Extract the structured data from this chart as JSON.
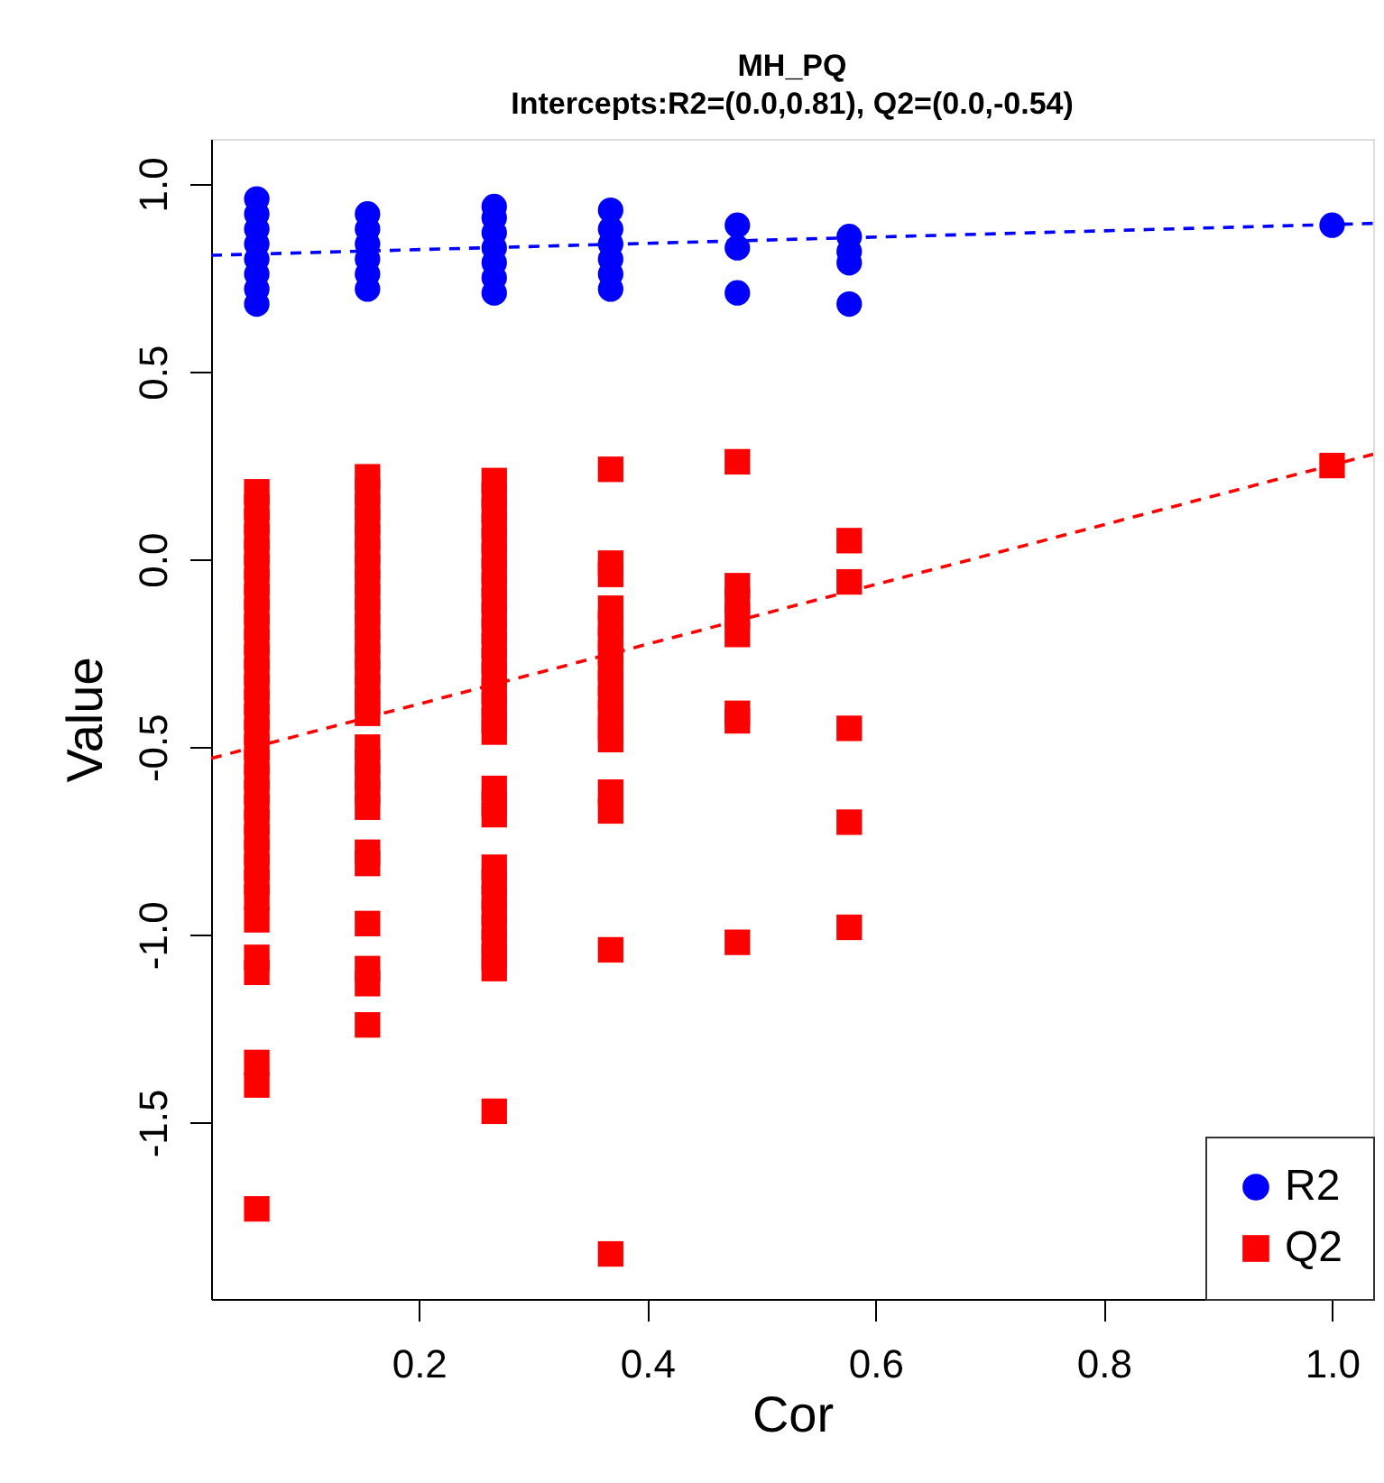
{
  "chart_data": {
    "type": "scatter",
    "title": "MH_PQ",
    "subtitle": "Intercepts:R2=(0.0,0.81), Q2=(0.0,-0.54)",
    "xlabel": "Cor",
    "ylabel": "Value",
    "xlim": [
      0.018,
      1.036
    ],
    "ylim": [
      -1.97,
      1.12
    ],
    "xticks": [
      0.2,
      0.4,
      0.6,
      0.8,
      {
        "value": 1.0,
        "label": "1.0"
      }
    ],
    "yticks": [
      -1.5,
      {
        "value": -1.0,
        "label": "-1.0"
      },
      -0.5,
      {
        "value": 0.0,
        "label": "0.0"
      },
      0.5,
      {
        "value": 1.0,
        "label": "1.0"
      }
    ],
    "grid": false,
    "legend": "bottom right",
    "series": [
      {
        "name": "R2",
        "marker": "circle",
        "color": "#0000ff",
        "x": [
          0.058,
          0.058,
          0.058,
          0.058,
          0.058,
          0.058,
          0.058,
          0.058,
          0.155,
          0.155,
          0.155,
          0.155,
          0.155,
          0.155,
          0.266,
          0.266,
          0.266,
          0.266,
          0.266,
          0.266,
          0.266,
          0.368,
          0.368,
          0.368,
          0.368,
          0.368,
          0.368,
          0.479,
          0.479,
          0.479,
          0.577,
          0.577,
          0.577,
          0.577,
          1.0
        ],
        "values": [
          0.68,
          0.72,
          0.76,
          0.8,
          0.84,
          0.88,
          0.92,
          0.96,
          0.72,
          0.76,
          0.8,
          0.84,
          0.88,
          0.92,
          0.71,
          0.75,
          0.79,
          0.83,
          0.87,
          0.91,
          0.94,
          0.72,
          0.76,
          0.8,
          0.84,
          0.88,
          0.93,
          0.71,
          0.83,
          0.89,
          0.68,
          0.79,
          0.82,
          0.86,
          0.89
        ]
      },
      {
        "name": "Q2",
        "marker": "square",
        "color": "#ff0000",
        "x": [
          0.058,
          0.058,
          0.058,
          0.058,
          0.058,
          0.058,
          0.058,
          0.058,
          0.058,
          0.058,
          0.058,
          0.058,
          0.058,
          0.058,
          0.058,
          0.058,
          0.058,
          0.058,
          0.058,
          0.058,
          0.058,
          0.058,
          0.058,
          0.058,
          0.058,
          0.058,
          0.058,
          0.058,
          0.058,
          0.058,
          0.058,
          0.058,
          0.058,
          0.058,
          0.155,
          0.155,
          0.155,
          0.155,
          0.155,
          0.155,
          0.155,
          0.155,
          0.155,
          0.155,
          0.155,
          0.155,
          0.155,
          0.155,
          0.155,
          0.155,
          0.155,
          0.155,
          0.155,
          0.155,
          0.155,
          0.155,
          0.155,
          0.155,
          0.155,
          0.155,
          0.155,
          0.155,
          0.266,
          0.266,
          0.266,
          0.266,
          0.266,
          0.266,
          0.266,
          0.266,
          0.266,
          0.266,
          0.266,
          0.266,
          0.266,
          0.266,
          0.266,
          0.266,
          0.266,
          0.266,
          0.266,
          0.266,
          0.266,
          0.266,
          0.266,
          0.266,
          0.266,
          0.266,
          0.266,
          0.266,
          0.266,
          0.266,
          0.368,
          0.368,
          0.368,
          0.368,
          0.368,
          0.368,
          0.368,
          0.368,
          0.368,
          0.368,
          0.368,
          0.368,
          0.368,
          0.368,
          0.368,
          0.368,
          0.368,
          0.479,
          0.479,
          0.479,
          0.479,
          0.479,
          0.479,
          0.479,
          0.479,
          0.577,
          0.577,
          0.577,
          0.577,
          0.577,
          1.0
        ],
        "values": [
          0.18,
          0.14,
          0.1,
          0.06,
          0.02,
          -0.02,
          -0.06,
          -0.1,
          -0.14,
          -0.18,
          -0.22,
          -0.26,
          -0.3,
          -0.34,
          -0.38,
          -0.42,
          -0.46,
          -0.5,
          -0.54,
          -0.58,
          -0.62,
          -0.66,
          -0.7,
          -0.74,
          -0.78,
          -0.82,
          -0.86,
          -0.9,
          -0.96,
          -1.06,
          -1.1,
          -1.34,
          -1.4,
          -1.73,
          0.22,
          0.18,
          0.14,
          0.1,
          0.06,
          0.02,
          -0.02,
          -0.06,
          -0.1,
          -0.14,
          -0.18,
          -0.22,
          -0.26,
          -0.3,
          -0.34,
          -0.38,
          -0.41,
          -0.5,
          -0.54,
          -0.58,
          -0.62,
          -0.66,
          -0.78,
          -0.81,
          -0.97,
          -1.09,
          -1.13,
          -1.24,
          0.21,
          0.17,
          0.13,
          0.09,
          0.05,
          0.01,
          -0.03,
          -0.07,
          -0.11,
          -0.15,
          -0.19,
          -0.23,
          -0.27,
          -0.31,
          -0.35,
          -0.39,
          -0.43,
          -0.46,
          -0.61,
          -0.65,
          -0.68,
          -0.82,
          -0.86,
          -0.9,
          -0.94,
          -0.98,
          -1.02,
          -1.06,
          -1.09,
          -1.47,
          0.24,
          -0.01,
          -0.04,
          -0.13,
          -0.17,
          -0.21,
          -0.25,
          -0.29,
          -0.33,
          -0.37,
          -0.41,
          -0.45,
          -0.48,
          -0.62,
          -0.67,
          -1.04,
          -1.85,
          0.26,
          -0.07,
          -0.11,
          -0.15,
          -0.2,
          -0.41,
          -0.43,
          -1.02,
          0.05,
          -0.06,
          -0.45,
          -0.7,
          -0.98,
          0.25
        ]
      },
      {
        "type": "line",
        "color": "#0000ff",
        "line_style": "dashed",
        "x": [
          0.018,
          1.036
        ],
        "values": [
          0.81,
          0.895
        ]
      },
      {
        "type": "line",
        "color": "#ff0000",
        "line_style": "dashed",
        "x": [
          0.018,
          1.036
        ],
        "values": [
          -0.53,
          0.28
        ]
      }
    ]
  }
}
